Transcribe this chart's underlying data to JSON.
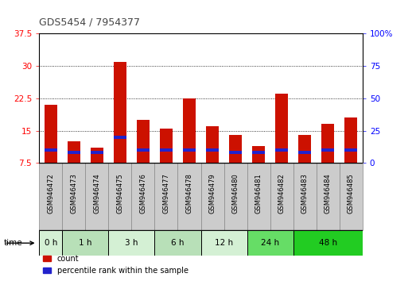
{
  "title": "GDS5454 / 7954377",
  "samples": [
    "GSM946472",
    "GSM946473",
    "GSM946474",
    "GSM946475",
    "GSM946476",
    "GSM946477",
    "GSM946478",
    "GSM946479",
    "GSM946480",
    "GSM946481",
    "GSM946482",
    "GSM946483",
    "GSM946484",
    "GSM946485"
  ],
  "count_values": [
    21.0,
    12.5,
    11.0,
    31.0,
    17.5,
    15.5,
    22.5,
    16.0,
    14.0,
    11.5,
    23.5,
    14.0,
    16.5,
    18.0
  ],
  "percentile_values": [
    10.5,
    10.0,
    10.0,
    13.5,
    10.5,
    10.5,
    10.5,
    10.5,
    10.0,
    10.0,
    10.5,
    10.0,
    10.5,
    10.5
  ],
  "time_groups": [
    {
      "label": "0 h",
      "indices": [
        0
      ],
      "color": "#d4f0d4"
    },
    {
      "label": "1 h",
      "indices": [
        1,
        2
      ],
      "color": "#b8e0b8"
    },
    {
      "label": "3 h",
      "indices": [
        3,
        4
      ],
      "color": "#d4f0d4"
    },
    {
      "label": "6 h",
      "indices": [
        5,
        6
      ],
      "color": "#b8e0b8"
    },
    {
      "label": "12 h",
      "indices": [
        7,
        8
      ],
      "color": "#d4f0d4"
    },
    {
      "label": "24 h",
      "indices": [
        9,
        10
      ],
      "color": "#66dd66"
    },
    {
      "label": "48 h",
      "indices": [
        11,
        12,
        13
      ],
      "color": "#22cc22"
    }
  ],
  "ylim_left": [
    7.5,
    37.5
  ],
  "ylim_right": [
    0,
    100
  ],
  "yticks_left": [
    7.5,
    15.0,
    22.5,
    30.0,
    37.5
  ],
  "yticks_left_labels": [
    "7.5",
    "15",
    "22.5",
    "30",
    "37.5"
  ],
  "yticks_right": [
    0,
    25,
    50,
    75,
    100
  ],
  "yticks_right_labels": [
    "0",
    "25",
    "50",
    "75",
    "100%"
  ],
  "bar_color": "#cc1100",
  "percentile_color": "#2222cc",
  "bg_color": "#ffffff",
  "bar_width": 0.55,
  "sample_box_color": "#cccccc",
  "sample_box_edge": "#888888"
}
